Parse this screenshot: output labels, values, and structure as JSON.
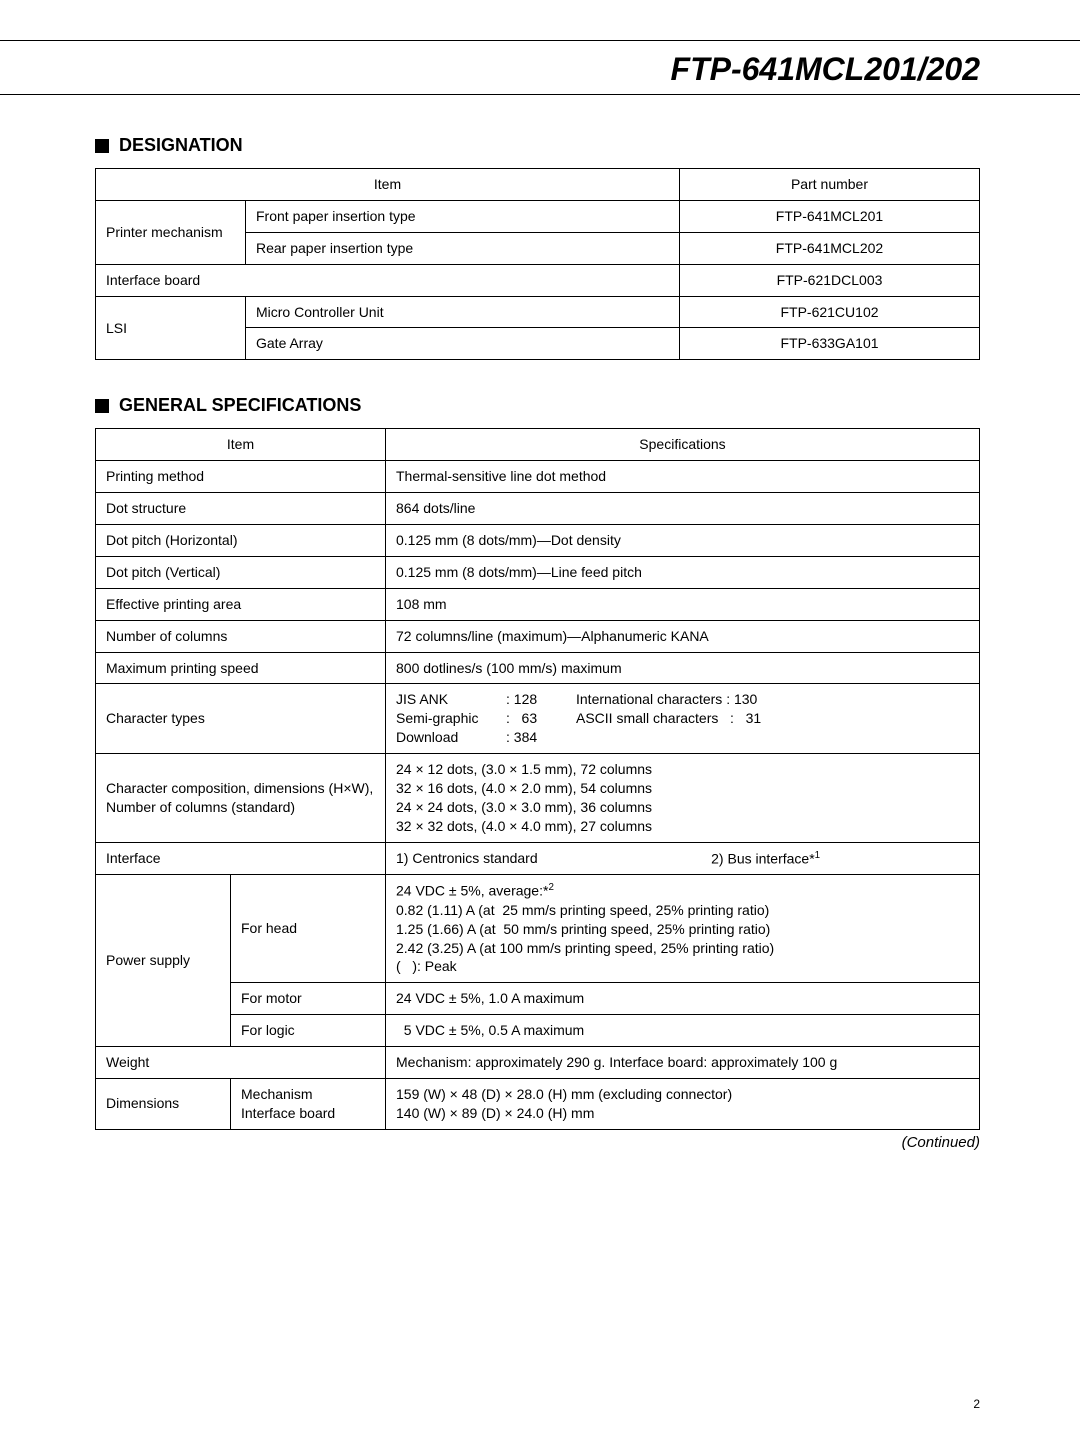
{
  "header": {
    "title": "FTP-641MCL201/202"
  },
  "designation": {
    "heading": "DESIGNATION",
    "col_item": "Item",
    "col_part": "Part number",
    "rows": [
      {
        "group": "Printer mechanism",
        "sub": "Front paper insertion type",
        "part": "FTP-641MCL201"
      },
      {
        "group": "",
        "sub": "Rear paper insertion type",
        "part": "FTP-641MCL202"
      },
      {
        "group": "Interface board",
        "sub": "",
        "part": "FTP-621DCL003"
      },
      {
        "group": "LSI",
        "sub": "Micro Controller Unit",
        "part": "FTP-621CU102"
      },
      {
        "group": "",
        "sub": "Gate Array",
        "part": "FTP-633GA101"
      }
    ]
  },
  "general": {
    "heading": "GENERAL SPECIFICATIONS",
    "col_item": "Item",
    "col_spec": "Specifications",
    "printing_method": {
      "label": "Printing method",
      "value": "Thermal-sensitive line dot method"
    },
    "dot_structure": {
      "label": "Dot structure",
      "value": "864 dots/line"
    },
    "dot_pitch_h": {
      "label": "Dot pitch (Horizontal)",
      "value": "0.125 mm (8 dots/mm)—Dot density"
    },
    "dot_pitch_v": {
      "label": "Dot pitch (Vertical)",
      "value": "0.125 mm (8 dots/mm)—Line feed pitch"
    },
    "eff_area": {
      "label": "Effective printing area",
      "value": "108 mm"
    },
    "num_cols": {
      "label": "Number of columns",
      "value": "72 columns/line (maximum)—Alphanumeric KANA"
    },
    "max_speed": {
      "label": "Maximum printing speed",
      "value": "800 dotlines/s (100 mm/s) maximum"
    },
    "char_types": {
      "label": "Character types",
      "l1a": "JIS ANK",
      "l1b": ": 128",
      "l1c": "International characters : 130",
      "l2a": "Semi-graphic",
      "l2b": ":   63",
      "l2c": "ASCII small characters   :   31",
      "l3a": "Download",
      "l3b": ": 384"
    },
    "char_comp": {
      "label": "Character composition, dimensions (H×W), Number of columns (standard)",
      "l1": "24 × 12 dots, (3.0 × 1.5 mm), 72 columns",
      "l2": "32 × 16 dots, (4.0 × 2.0 mm), 54 columns",
      "l3": "24 × 24 dots, (3.0 × 3.0 mm), 36 columns",
      "l4": "32 × 32 dots, (4.0 × 4.0 mm), 27 columns"
    },
    "interface": {
      "label": "Interface",
      "v1": "1) Centronics standard",
      "v2": "2) Bus interface*",
      "sup": "1"
    },
    "power_supply": {
      "label": "Power supply",
      "head": {
        "label": "For head",
        "l1": "24 VDC ± 5%, average:*",
        "sup": "2",
        "l2": "0.82 (1.11) A (at  25 mm/s printing speed, 25% printing ratio)",
        "l3": "1.25 (1.66) A (at  50 mm/s printing speed, 25% printing ratio)",
        "l4": "2.42 (3.25) A (at 100 mm/s printing speed, 25% printing ratio)",
        "l5": "(   ): Peak"
      },
      "motor": {
        "label": "For motor",
        "value": "24 VDC ± 5%, 1.0 A maximum"
      },
      "logic": {
        "label": "For logic",
        "value": "  5 VDC ± 5%, 0.5 A maximum"
      }
    },
    "weight": {
      "label": "Weight",
      "value": "Mechanism: approximately 290 g.  Interface board: approximately 100 g"
    },
    "dimensions": {
      "label": "Dimensions",
      "sub1": "Mechanism",
      "sub2": "Interface board",
      "l1": "159 (W) × 48 (D) × 28.0 (H) mm (excluding connector)",
      "l2": "140 (W) × 89 (D) × 24.0 (H) mm"
    },
    "continued": "(Continued)"
  },
  "page_number": "2"
}
